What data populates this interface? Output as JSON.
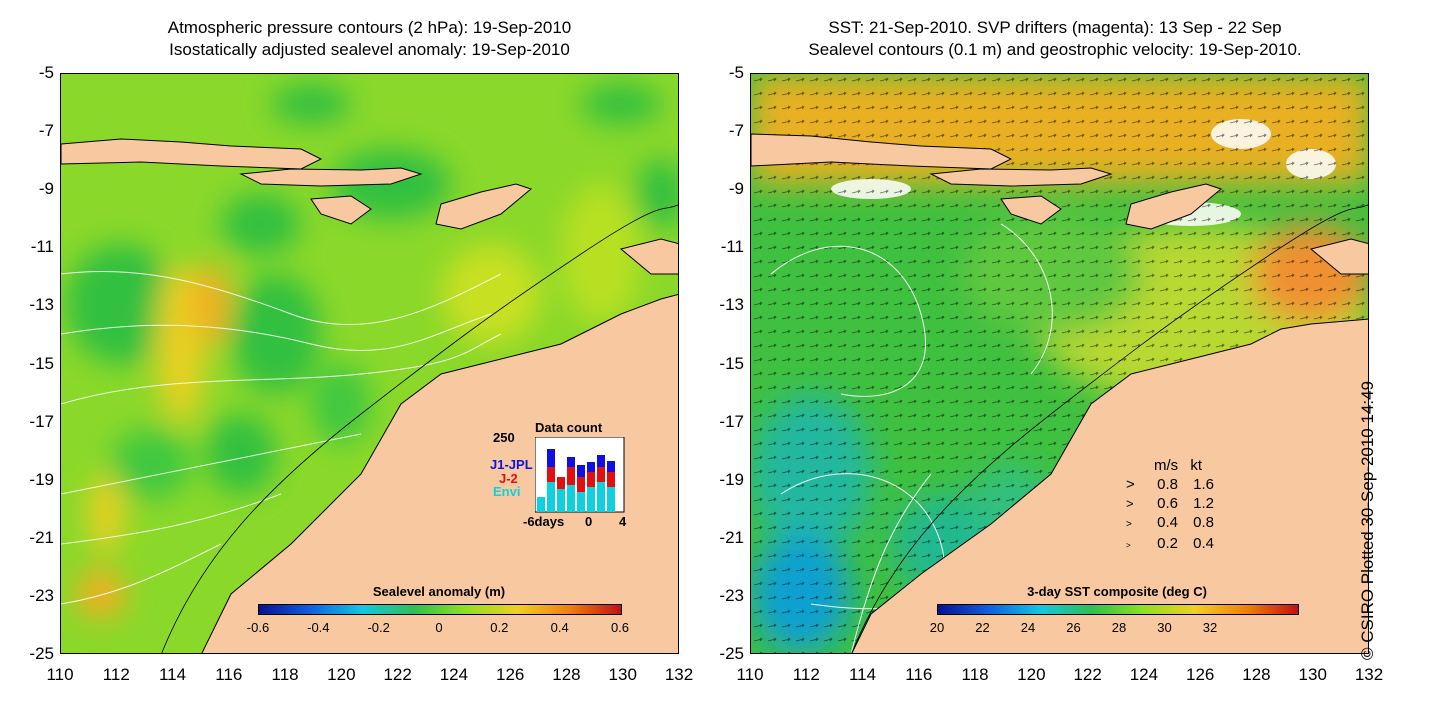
{
  "left_panel": {
    "title_line1": "Atmospheric pressure contours (2 hPa): 19-Sep-2010",
    "title_line2": "Isostatically adjusted sealevel anomaly: 19-Sep-2010",
    "colorbar": {
      "title": "Sealevel anomaly (m)",
      "ticks": [
        "-0.6",
        "-0.4",
        "-0.2",
        "0",
        "0.2",
        "0.4",
        "0.6"
      ]
    },
    "data_count": {
      "title": "Data count",
      "ymax_label": "250",
      "series": [
        "J1-JPL",
        "J-2",
        "Envi"
      ],
      "series_colors": [
        "#1010e0",
        "#e01010",
        "#10d0e0"
      ],
      "x_ticks": [
        "-6days",
        "0",
        "4"
      ]
    }
  },
  "right_panel": {
    "title_line1": "SST: 21-Sep-2010. SVP drifters (magenta): 13 Sep - 22 Sep",
    "title_line2": "Sealevel contours (0.1 m) and geostrophic velocity: 19-Sep-2010.",
    "colorbar": {
      "title": "3-day SST composite (deg C)",
      "ticks": [
        "20",
        "22",
        "24",
        "26",
        "28",
        "30",
        "32"
      ]
    },
    "velocity_legend": {
      "header_ms": "m/s",
      "header_kt": "kt",
      "rows": [
        {
          "ms": "0.8",
          "kt": "1.6"
        },
        {
          "ms": "0.6",
          "kt": "1.2"
        },
        {
          "ms": "0.4",
          "kt": "0.8"
        },
        {
          "ms": "0.2",
          "kt": "0.4"
        }
      ]
    }
  },
  "axes": {
    "lat_ticks": [
      "-5",
      "-7",
      "-9",
      "-11",
      "-13",
      "-15",
      "-17",
      "-19",
      "-21",
      "-23",
      "-25"
    ],
    "lon_ticks": [
      "110",
      "112",
      "114",
      "116",
      "118",
      "120",
      "122",
      "124",
      "126",
      "128",
      "130",
      "132"
    ]
  },
  "credit": "© CSIRO Plotted 30-Sep-2010 14:49",
  "colors": {
    "land": "#f8c8a0",
    "ocean_sla_base": "#7cd820",
    "ocean_sst_base": "#40c040"
  }
}
